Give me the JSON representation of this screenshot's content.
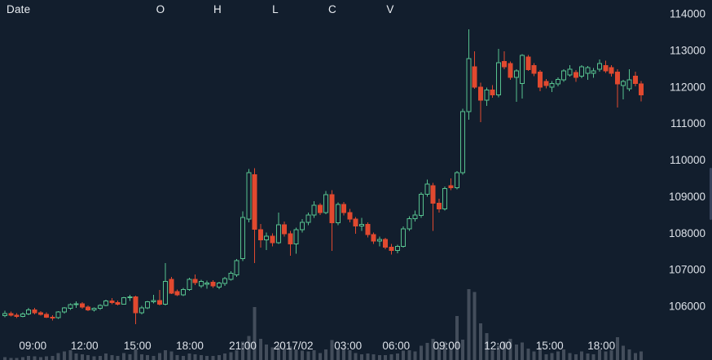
{
  "header": {
    "columns": [
      {
        "label": "Date"
      },
      {
        "label": "O"
      },
      {
        "label": "H"
      },
      {
        "label": "L"
      },
      {
        "label": "C"
      },
      {
        "label": "V"
      }
    ]
  },
  "colors": {
    "background": "#121e2d",
    "bullish": "#57c28f",
    "bearish": "#e1492f",
    "volume": "#4c5664",
    "axis_text": "#dce1e8",
    "header_text": "#e9edf2"
  },
  "chart_data": {
    "type": "candlestick",
    "title": "",
    "legend": "none",
    "grid": false,
    "y_axis_side": "right",
    "y_ticks": [
      114000,
      113000,
      112000,
      111000,
      110000,
      109000,
      108000,
      107000,
      106000
    ],
    "y_range_visible": [
      105400,
      114400
    ],
    "x_ticks": [
      {
        "label": "09:00",
        "i": 4.7
      },
      {
        "label": "12:00",
        "i": 13.4
      },
      {
        "label": "15:00",
        "i": 22.3
      },
      {
        "label": "18:00",
        "i": 31.1
      },
      {
        "label": "21:00",
        "i": 40.0
      },
      {
        "label": "2017/02",
        "i": 48.5
      },
      {
        "label": "03:00",
        "i": 57.7
      },
      {
        "label": "06:00",
        "i": 65.8
      },
      {
        "label": "09:00",
        "i": 74.3
      },
      {
        "label": "12:00",
        "i": 82.9
      },
      {
        "label": "15:00",
        "i": 91.6
      },
      {
        "label": "18:00",
        "i": 100.3
      }
    ],
    "series_format": [
      "open",
      "high",
      "low",
      "close",
      "volume_relative"
    ],
    "volume_scale_note": "volume_relative is 0-100 of tallest bar",
    "ohlcv": [
      [
        105740,
        105880,
        105700,
        105800,
        4
      ],
      [
        105800,
        105860,
        105720,
        105760,
        3
      ],
      [
        105760,
        105810,
        105680,
        105720,
        3
      ],
      [
        105720,
        105830,
        105700,
        105790,
        4
      ],
      [
        105790,
        105960,
        105760,
        105900,
        6
      ],
      [
        105900,
        105950,
        105780,
        105820,
        5
      ],
      [
        105820,
        105870,
        105740,
        105780,
        4
      ],
      [
        105780,
        105830,
        105680,
        105700,
        5
      ],
      [
        105700,
        105760,
        105610,
        105690,
        6
      ],
      [
        105690,
        105870,
        105660,
        105840,
        10
      ],
      [
        105840,
        105980,
        105800,
        105950,
        12
      ],
      [
        105950,
        106080,
        105900,
        106050,
        14
      ],
      [
        106050,
        106130,
        105950,
        106070,
        9
      ],
      [
        106070,
        106110,
        105930,
        105980,
        8
      ],
      [
        105980,
        106020,
        105870,
        105900,
        7
      ],
      [
        105900,
        105970,
        105850,
        105940,
        5
      ],
      [
        105940,
        106060,
        105900,
        106020,
        6
      ],
      [
        106020,
        106180,
        106000,
        106150,
        9
      ],
      [
        106150,
        106220,
        106060,
        106100,
        7
      ],
      [
        106100,
        106160,
        106020,
        106060,
        6
      ],
      [
        106060,
        106260,
        106040,
        106230,
        10
      ],
      [
        106230,
        106310,
        106150,
        106260,
        8
      ],
      [
        106260,
        106290,
        105510,
        105820,
        15
      ],
      [
        105820,
        106010,
        105780,
        105960,
        8
      ],
      [
        105960,
        106150,
        105920,
        106120,
        7
      ],
      [
        106120,
        106310,
        106080,
        106160,
        6
      ],
      [
        106160,
        106450,
        106020,
        106060,
        10
      ],
      [
        106060,
        107180,
        106020,
        106680,
        14
      ],
      [
        106730,
        106800,
        106330,
        106360,
        12
      ],
      [
        106400,
        106460,
        106280,
        106310,
        7
      ],
      [
        106310,
        106500,
        106280,
        106460,
        6
      ],
      [
        106460,
        106780,
        106420,
        106730,
        9
      ],
      [
        106730,
        106870,
        106580,
        106640,
        8
      ],
      [
        106560,
        106720,
        106500,
        106680,
        7
      ],
      [
        106600,
        106700,
        106480,
        106630,
        6
      ],
      [
        106660,
        106710,
        106500,
        106560,
        6
      ],
      [
        106520,
        106670,
        106470,
        106640,
        7
      ],
      [
        106620,
        106800,
        106560,
        106760,
        9
      ],
      [
        106740,
        106960,
        106700,
        106900,
        11
      ],
      [
        106860,
        107290,
        106800,
        107250,
        14
      ],
      [
        107300,
        108600,
        107240,
        108430,
        26
      ],
      [
        108380,
        109750,
        108300,
        109650,
        34
      ],
      [
        109600,
        109780,
        107180,
        108100,
        75
      ],
      [
        108100,
        108250,
        107600,
        107820,
        30
      ],
      [
        107820,
        108020,
        107540,
        107920,
        22
      ],
      [
        107920,
        108000,
        107640,
        107740,
        18
      ],
      [
        107740,
        108560,
        107700,
        108230,
        20
      ],
      [
        108230,
        108320,
        107900,
        107980,
        16
      ],
      [
        107980,
        108060,
        107380,
        107700,
        19
      ],
      [
        107700,
        108150,
        107440,
        108100,
        15
      ],
      [
        108100,
        108380,
        108020,
        108300,
        13
      ],
      [
        108300,
        108560,
        108220,
        108500,
        12
      ],
      [
        108500,
        108880,
        108420,
        108760,
        14
      ],
      [
        108760,
        108820,
        108500,
        108560,
        10
      ],
      [
        108560,
        109150,
        108520,
        109050,
        15
      ],
      [
        109050,
        109180,
        107520,
        108280,
        28
      ],
      [
        108280,
        108840,
        108220,
        108780,
        16
      ],
      [
        108780,
        108850,
        108480,
        108560,
        16
      ],
      [
        108560,
        108660,
        108300,
        108380,
        14
      ],
      [
        108380,
        108440,
        107980,
        108200,
        10
      ],
      [
        108200,
        108420,
        108060,
        108240,
        8
      ],
      [
        108240,
        108300,
        107880,
        107960,
        9
      ],
      [
        107960,
        108020,
        107700,
        107780,
        8
      ],
      [
        107780,
        107900,
        107640,
        107830,
        7
      ],
      [
        107830,
        107870,
        107560,
        107620,
        7
      ],
      [
        107620,
        107700,
        107420,
        107530,
        8
      ],
      [
        107530,
        107680,
        107450,
        107640,
        9
      ],
      [
        107640,
        108180,
        107600,
        108120,
        13
      ],
      [
        108120,
        108460,
        108060,
        108400,
        14
      ],
      [
        108400,
        108620,
        108320,
        108500,
        12
      ],
      [
        108480,
        109120,
        108420,
        109060,
        20
      ],
      [
        109060,
        109460,
        109000,
        109340,
        24
      ],
      [
        109300,
        109380,
        108060,
        108820,
        30
      ],
      [
        108820,
        108940,
        108560,
        108660,
        18
      ],
      [
        108660,
        109280,
        108620,
        109220,
        26
      ],
      [
        109300,
        109500,
        109180,
        109240,
        16
      ],
      [
        109240,
        109700,
        109200,
        109650,
        62
      ],
      [
        109650,
        111400,
        109600,
        111330,
        29
      ],
      [
        111330,
        113580,
        111100,
        112770,
        100
      ],
      [
        112550,
        112970,
        111950,
        112000,
        96
      ],
      [
        112000,
        112120,
        111040,
        111640,
        52
      ],
      [
        111640,
        111980,
        111480,
        111920,
        38
      ],
      [
        111920,
        112050,
        111700,
        111780,
        14
      ],
      [
        111780,
        113040,
        111720,
        112660,
        20
      ],
      [
        112700,
        112970,
        112480,
        112550,
        26
      ],
      [
        112640,
        112700,
        112200,
        112260,
        30
      ],
      [
        112260,
        112480,
        111590,
        112440,
        22
      ],
      [
        112100,
        112900,
        111680,
        112860,
        25
      ],
      [
        112820,
        112880,
        112440,
        112480,
        16
      ],
      [
        112590,
        112650,
        112300,
        112370,
        12
      ],
      [
        112410,
        112460,
        111880,
        111990,
        18
      ],
      [
        112150,
        112220,
        111960,
        112040,
        8
      ],
      [
        111990,
        112160,
        111860,
        112100,
        10
      ],
      [
        112080,
        112260,
        112020,
        112210,
        12
      ],
      [
        112190,
        112480,
        112140,
        112440,
        15
      ],
      [
        112330,
        112600,
        112280,
        112480,
        10
      ],
      [
        112400,
        112460,
        112140,
        112260,
        8
      ],
      [
        112300,
        112600,
        112240,
        112550,
        12
      ],
      [
        112370,
        112570,
        112200,
        112530,
        9
      ],
      [
        112370,
        112520,
        112250,
        112440,
        8
      ],
      [
        112480,
        112750,
        112420,
        112640,
        15
      ],
      [
        112590,
        112720,
        112380,
        112440,
        12
      ],
      [
        112530,
        112600,
        112280,
        112370,
        14
      ],
      [
        112410,
        112480,
        111440,
        112080,
        32
      ],
      [
        112040,
        112200,
        111660,
        112150,
        20
      ],
      [
        111950,
        112480,
        111880,
        112200,
        15
      ],
      [
        112300,
        112420,
        112020,
        112100,
        10
      ],
      [
        112080,
        112160,
        111600,
        111780,
        12
      ]
    ]
  }
}
